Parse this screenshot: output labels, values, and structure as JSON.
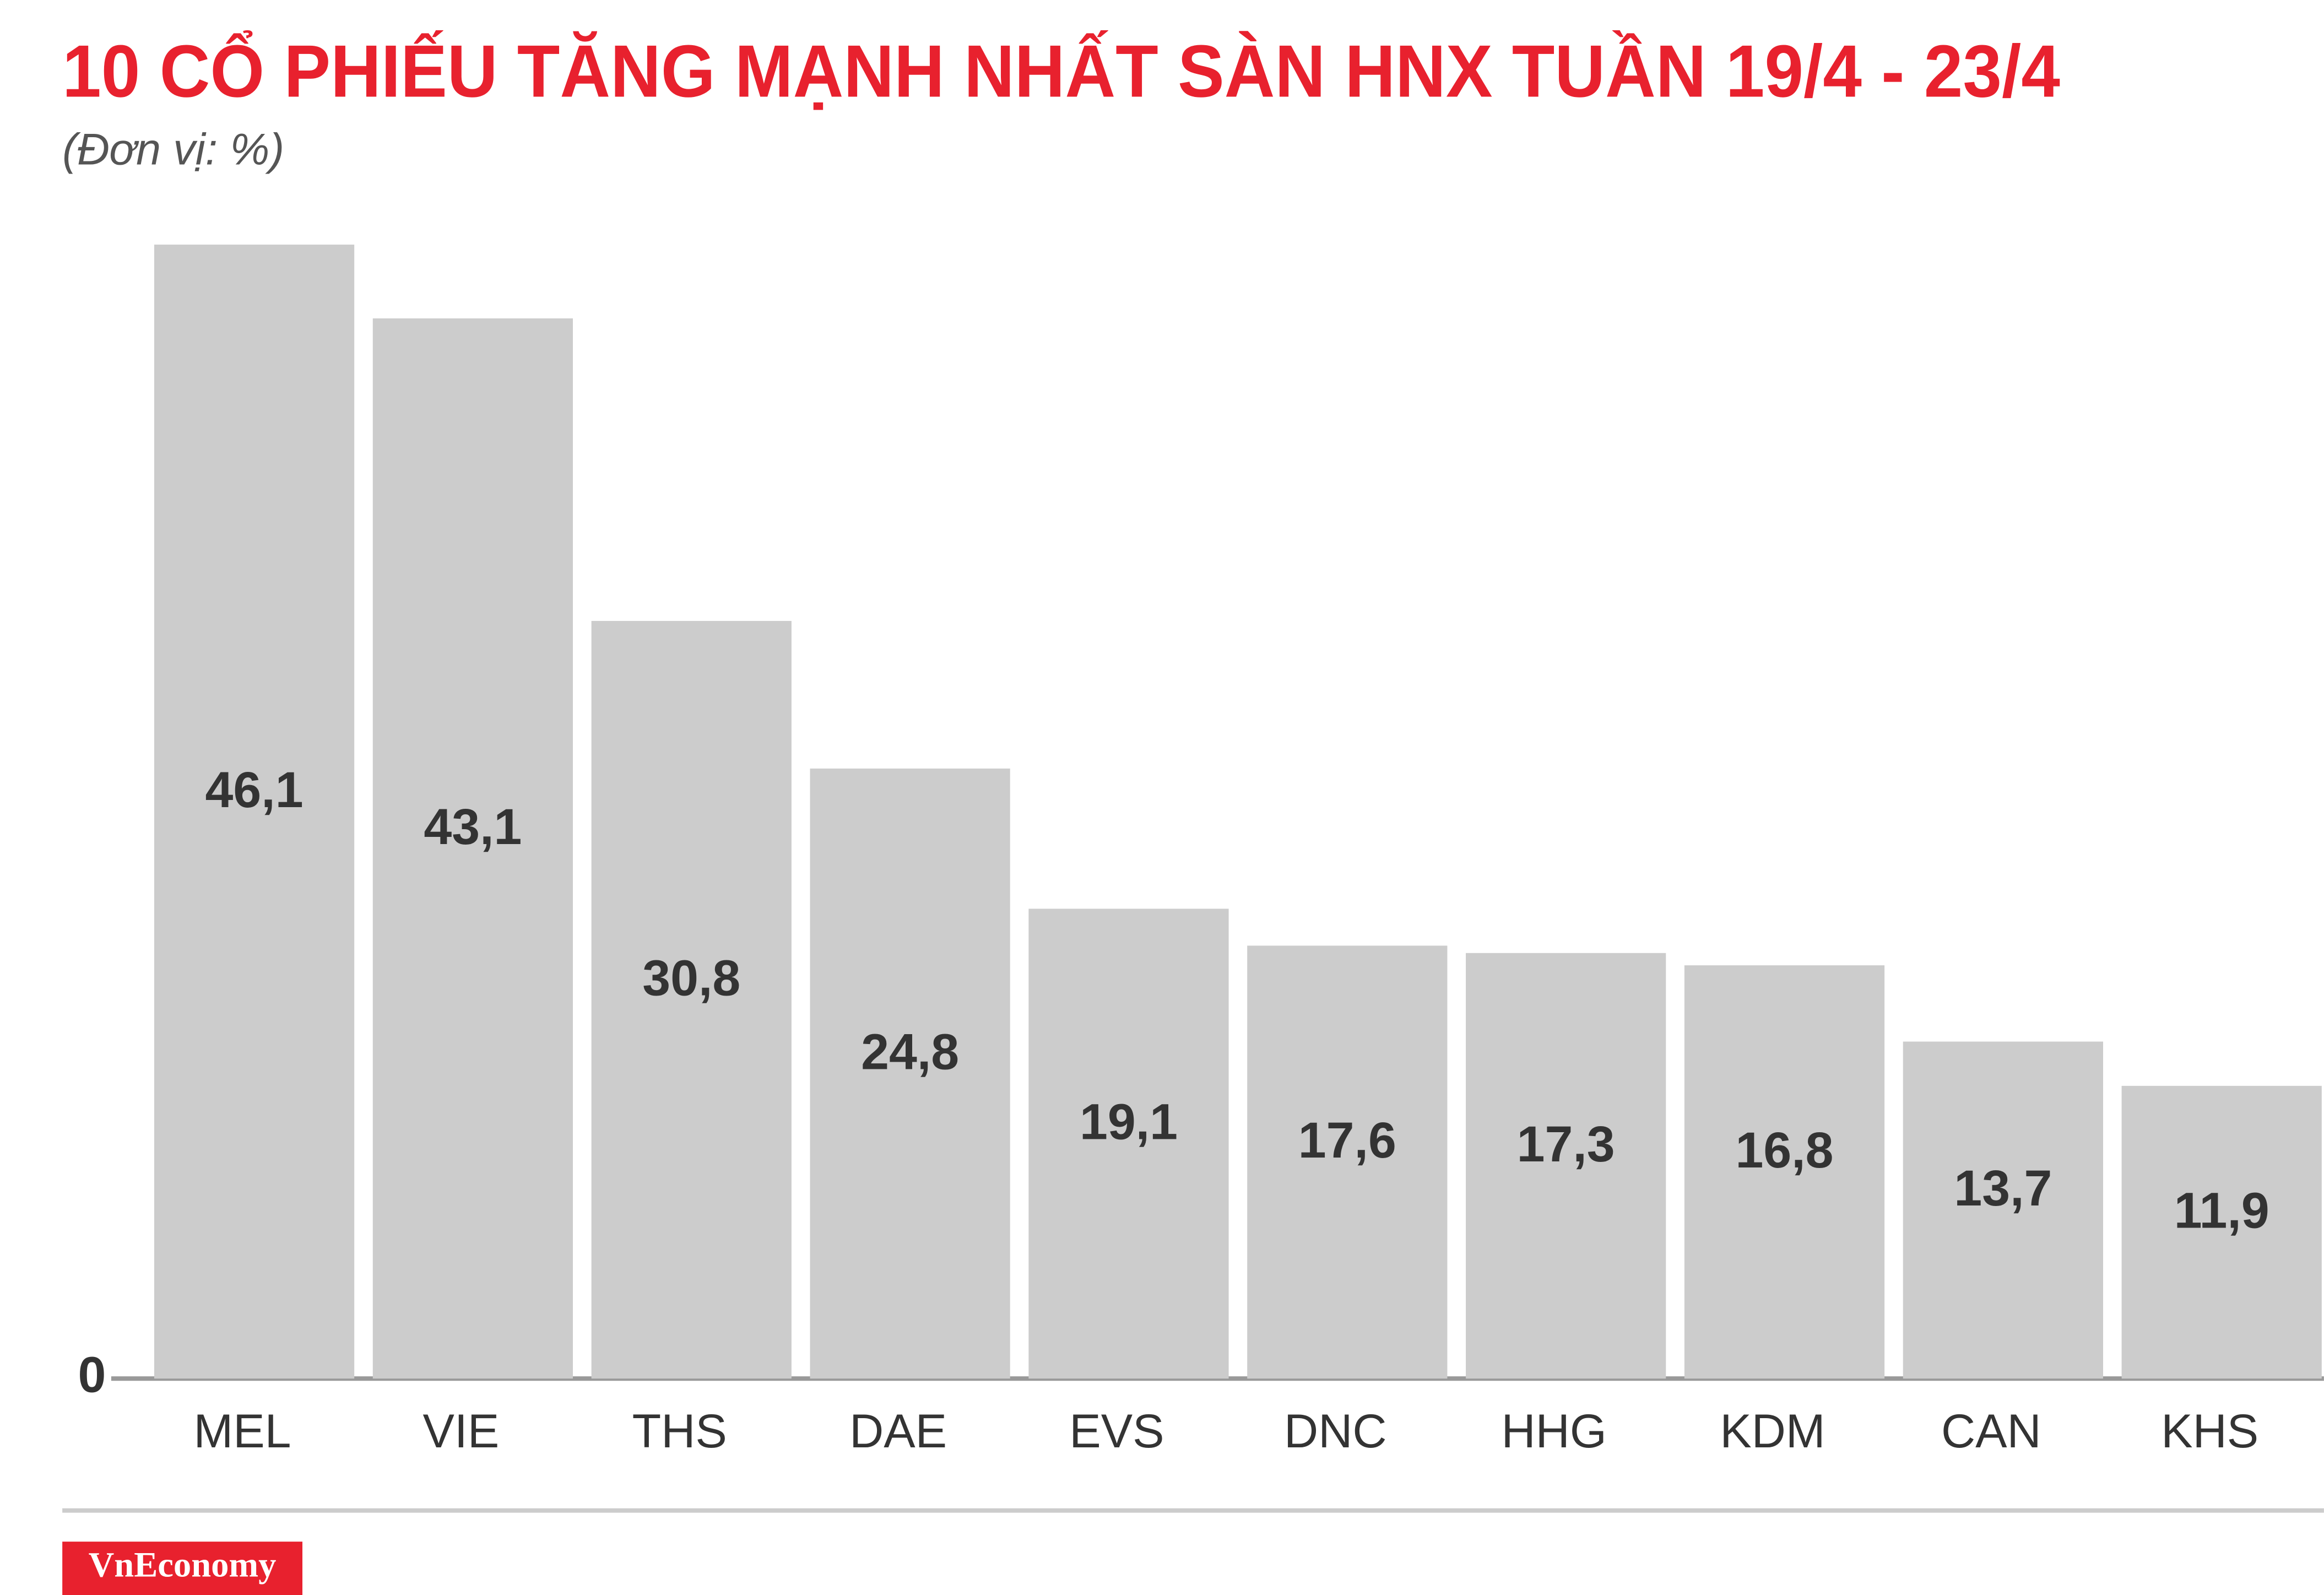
{
  "chart_data": {
    "type": "bar",
    "title": "10 CỔ PHIẾU TĂNG MẠNH NHẤT SÀN HNX TUẦN 19/4 - 23/4",
    "subtitle": "(Đơn vị: %)",
    "categories": [
      "MEL",
      "VIE",
      "THS",
      "DAE",
      "EVS",
      "DNC",
      "HHG",
      "KDM",
      "CAN",
      "KHS"
    ],
    "values": [
      46.1,
      43.1,
      30.8,
      24.8,
      19.1,
      17.6,
      17.3,
      16.8,
      13.7,
      11.9
    ],
    "value_labels": [
      "46,1",
      "43,1",
      "30,8",
      "24,8",
      "19,1",
      "17,6",
      "17,3",
      "16,8",
      "13,7",
      "11,9"
    ],
    "color": "#cccccc",
    "ylim": [
      0,
      46.1
    ],
    "yticks": [
      0
    ],
    "grid": false
  },
  "brand": "VnEconomy"
}
